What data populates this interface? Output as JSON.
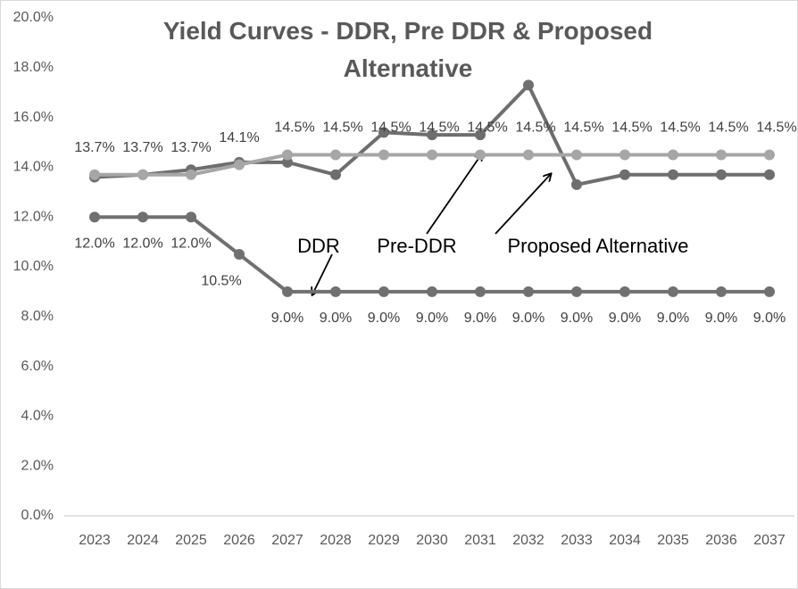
{
  "chart_data": {
    "type": "line",
    "title": "Yield Curves - DDR, Pre DDR & Proposed Alternative",
    "categories": [
      "2023",
      "2024",
      "2025",
      "2026",
      "2027",
      "2028",
      "2029",
      "2030",
      "2031",
      "2032",
      "2033",
      "2034",
      "2035",
      "2036",
      "2037"
    ],
    "series": [
      {
        "name": "Proposed Alternative",
        "color": "#6e6e6e",
        "values": [
          13.6,
          13.7,
          13.9,
          14.2,
          14.2,
          13.7,
          15.4,
          15.3,
          15.3,
          17.3,
          13.3,
          13.7,
          13.7,
          13.7,
          13.7
        ]
      },
      {
        "name": "Pre-DDR",
        "color": "#a6a6a6",
        "values": [
          13.7,
          13.7,
          13.7,
          14.1,
          14.5,
          14.5,
          14.5,
          14.5,
          14.5,
          14.5,
          14.5,
          14.5,
          14.5,
          14.5,
          14.5
        ],
        "value_labels": [
          "13.7%",
          "13.7%",
          "13.7%",
          "14.1%",
          "14.5%",
          "14.5%",
          "14.5%",
          "14.5%",
          "14.5%",
          "14.5%",
          "14.5%",
          "14.5%",
          "14.5%",
          "14.5%",
          "14.5%"
        ]
      },
      {
        "name": "DDR",
        "color": "#707070",
        "values": [
          12.0,
          12.0,
          12.0,
          10.5,
          9.0,
          9.0,
          9.0,
          9.0,
          9.0,
          9.0,
          9.0,
          9.0,
          9.0,
          9.0,
          9.0
        ],
        "value_labels": [
          "12.0%",
          "12.0%",
          "12.0%",
          "10.5%",
          "9.0%",
          "9.0%",
          "9.0%",
          "9.0%",
          "9.0%",
          "9.0%",
          "9.0%",
          "9.0%",
          "9.0%",
          "9.0%",
          "9.0%"
        ]
      }
    ],
    "ylim": [
      0,
      20
    ],
    "yticks": [
      {
        "value": 0,
        "label": "0.0%"
      },
      {
        "value": 2,
        "label": "2.0%"
      },
      {
        "value": 4,
        "label": "4.0%"
      },
      {
        "value": 6,
        "label": "6.0%"
      },
      {
        "value": 8,
        "label": "8.0%"
      },
      {
        "value": 10,
        "label": "10.0%"
      },
      {
        "value": 12,
        "label": "12.0%"
      },
      {
        "value": 14,
        "label": "14.0%"
      },
      {
        "value": 16,
        "label": "16.0%"
      },
      {
        "value": 18,
        "label": "18.0%"
      },
      {
        "value": 20,
        "label": "20.0%"
      }
    ],
    "grid": false
  }
}
